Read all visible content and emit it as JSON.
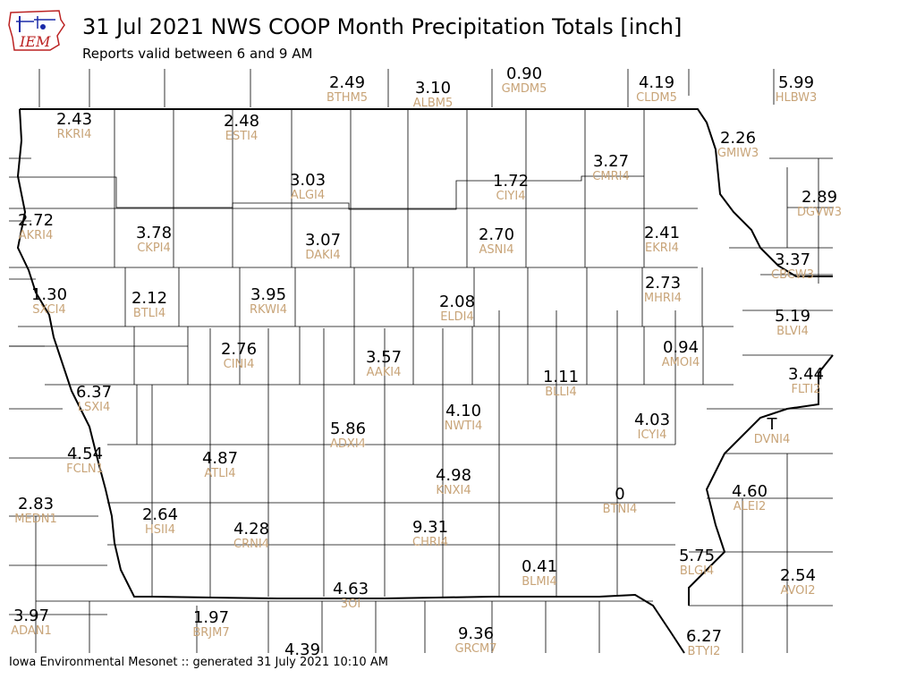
{
  "header": {
    "logo_text": "IEM",
    "title": "31 Jul 2021 NWS COOP Month Precipitation Totals [inch]",
    "subtitle": "Reports valid between 6 and 9 AM"
  },
  "footer": {
    "text": "Iowa Environmental Mesonet :: generated 31 July 2021 10:10 AM"
  },
  "colors": {
    "value_text": "#000000",
    "station_id_text": "#c8a478",
    "county_lines": "#000000",
    "state_border": "#000000"
  },
  "stations": [
    {
      "id": "BTHM5",
      "value": "2.49"
    },
    {
      "id": "ALBM5",
      "value": "3.10"
    },
    {
      "id": "GMDM5",
      "value": "0.90"
    },
    {
      "id": "CLDM5",
      "value": "4.19"
    },
    {
      "id": "HLBW3",
      "value": "5.99"
    },
    {
      "id": "RKRI4",
      "value": "2.43"
    },
    {
      "id": "ESTI4",
      "value": "2.48"
    },
    {
      "id": "GMIW3",
      "value": "2.26"
    },
    {
      "id": "CMRI4",
      "value": "3.27"
    },
    {
      "id": "ALGI4",
      "value": "3.03"
    },
    {
      "id": "CIYI4",
      "value": "1.72"
    },
    {
      "id": "DGVW3",
      "value": "2.89"
    },
    {
      "id": "AKRI4",
      "value": "2.72"
    },
    {
      "id": "CKPI4",
      "value": "3.78"
    },
    {
      "id": "DAKI4",
      "value": "3.07"
    },
    {
      "id": "ASNI4",
      "value": "2.70"
    },
    {
      "id": "EKRI4",
      "value": "2.41"
    },
    {
      "id": "CBCW3",
      "value": "3.37"
    },
    {
      "id": "SXCI4",
      "value": "1.30"
    },
    {
      "id": "BTLI4",
      "value": "2.12"
    },
    {
      "id": "RKWI4",
      "value": "3.95"
    },
    {
      "id": "ELDI4",
      "value": "2.08"
    },
    {
      "id": "MHRI4",
      "value": "2.73"
    },
    {
      "id": "BLVI4",
      "value": "5.19"
    },
    {
      "id": "CINI4",
      "value": "2.76"
    },
    {
      "id": "AMOI4",
      "value": "0.94"
    },
    {
      "id": "AAKI4",
      "value": "3.57"
    },
    {
      "id": "BLLI4",
      "value": "1.11"
    },
    {
      "id": "FLTI2",
      "value": "3.44"
    },
    {
      "id": "LSXI4",
      "value": "6.37"
    },
    {
      "id": "NWTI4",
      "value": "4.10"
    },
    {
      "id": "ICYI4",
      "value": "4.03"
    },
    {
      "id": "ADXI4",
      "value": "5.86"
    },
    {
      "id": "DVNI4",
      "value": "T"
    },
    {
      "id": "FCLN1",
      "value": "4.54"
    },
    {
      "id": "ATLI4",
      "value": "4.87"
    },
    {
      "id": "KNXI4",
      "value": "4.98"
    },
    {
      "id": "BTNI4",
      "value": "0"
    },
    {
      "id": "ALEI2",
      "value": "4.60"
    },
    {
      "id": "MEDN1",
      "value": "2.83"
    },
    {
      "id": "HSII4",
      "value": "2.64"
    },
    {
      "id": "CRNI4",
      "value": "4.28"
    },
    {
      "id": "CHRI4",
      "value": "9.31"
    },
    {
      "id": "BLMI4",
      "value": "0.41"
    },
    {
      "id": "BLGI4",
      "value": "5.75"
    },
    {
      "id": "AVOI2",
      "value": "2.54"
    },
    {
      "id": "3OI",
      "value": "4.63"
    },
    {
      "id": "ADAN1",
      "value": "3.97"
    },
    {
      "id": "BRJM7",
      "value": "1.97"
    },
    {
      "id": "GRCM7",
      "value": "9.36"
    },
    {
      "id": "BTYI2",
      "value": "6.27"
    },
    {
      "id": "",
      "value": "4.39"
    }
  ]
}
